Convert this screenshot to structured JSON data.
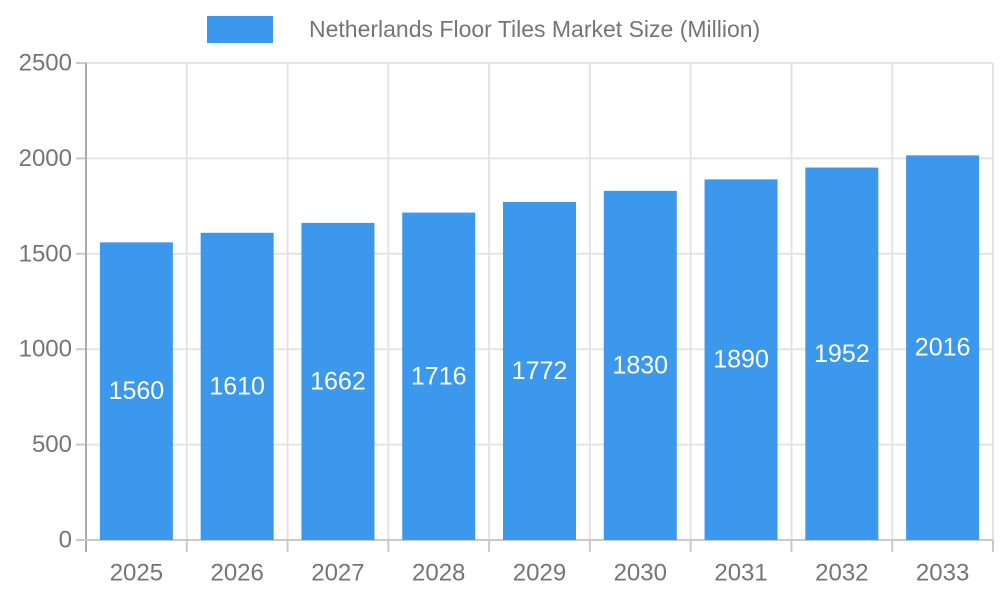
{
  "legend": {
    "label": "Netherlands Floor Tiles Market Size (Million)"
  },
  "colors": {
    "bar": "#3B98ED",
    "grid": "#E4E4E4",
    "axis": "#ABABAB",
    "tick": "#C9C9C9",
    "axis_text": "#757575",
    "bar_label_text": "#FFFFFF"
  },
  "chart_data": {
    "type": "bar",
    "title": "Netherlands Floor Tiles Market Size (Million)",
    "categories": [
      "2025",
      "2026",
      "2027",
      "2028",
      "2029",
      "2030",
      "2031",
      "2032",
      "2033"
    ],
    "values": [
      1560,
      1610,
      1662,
      1716,
      1772,
      1830,
      1890,
      1952,
      2016
    ],
    "xlabel": "",
    "ylabel": "",
    "ylim": [
      0,
      2500
    ],
    "yticks": [
      0,
      500,
      1000,
      1500,
      2000,
      2500
    ],
    "grid": true,
    "legend_position": "top",
    "bar_value_labels": "inside-center"
  }
}
